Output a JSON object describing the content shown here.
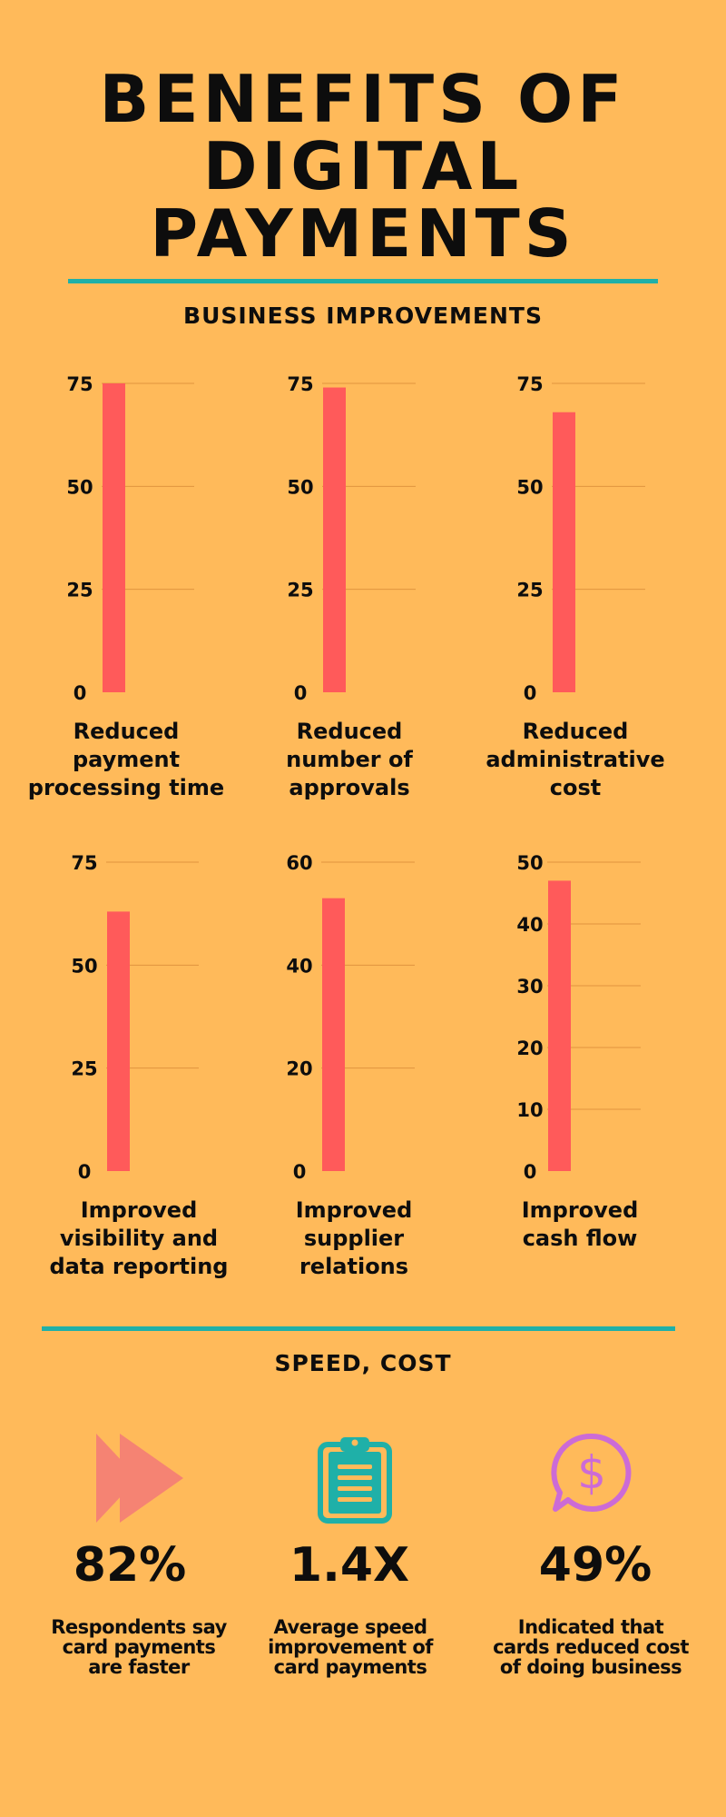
{
  "title_line1": "BENEFITS OF",
  "title_line2": "DIGITAL PAYMENTS",
  "section1_heading": "BUSINESS IMPROVEMENTS",
  "section2_heading": "SPEED, COST",
  "colors": {
    "background": "#FFBA5A",
    "bar": "#FF5A5A",
    "rule": "#1FB0A8",
    "grid": "#E0943F"
  },
  "chart_data": [
    {
      "type": "bar",
      "label_lines": [
        "Reduced",
        "payment",
        "processing time"
      ],
      "value": 75,
      "ylim": [
        0,
        75
      ],
      "yticks": [
        0,
        25,
        50,
        75
      ],
      "grid": true
    },
    {
      "type": "bar",
      "label_lines": [
        "Reduced",
        "number of",
        "approvals"
      ],
      "value": 74,
      "ylim": [
        0,
        75
      ],
      "yticks": [
        0,
        25,
        50,
        75
      ],
      "grid": true
    },
    {
      "type": "bar",
      "label_lines": [
        "Reduced",
        "administrative",
        "cost"
      ],
      "value": 68,
      "ylim": [
        0,
        75
      ],
      "yticks": [
        0,
        25,
        50,
        75
      ],
      "grid": true
    },
    {
      "type": "bar",
      "label_lines": [
        "Improved",
        "visibility and",
        "data reporting"
      ],
      "value": 63,
      "ylim": [
        0,
        75
      ],
      "yticks": [
        0,
        25,
        50,
        75
      ],
      "grid": true
    },
    {
      "type": "bar",
      "label_lines": [
        "Improved",
        "supplier",
        "relations"
      ],
      "value": 53,
      "ylim": [
        0,
        60
      ],
      "yticks": [
        0,
        20,
        40,
        60
      ],
      "grid": true
    },
    {
      "type": "bar",
      "label_lines": [
        "Improved",
        "cash flow"
      ],
      "value": 47,
      "ylim": [
        0,
        50
      ],
      "yticks": [
        0,
        10,
        20,
        30,
        40,
        50
      ],
      "grid": true
    }
  ],
  "stats": [
    {
      "icon": "fast-forward-icon",
      "color": "#F58373",
      "value": "82%",
      "desc_lines": [
        "Respondents say",
        "card payments",
        "are faster"
      ]
    },
    {
      "icon": "clipboard-icon",
      "color": "#1FB0A8",
      "value": "1.4X",
      "desc_lines": [
        "Average speed",
        "improvement of",
        "card payments"
      ]
    },
    {
      "icon": "dollar-speech-bubble-icon",
      "color": "#CC6BD6",
      "value": "49%",
      "desc_lines": [
        "Indicated that",
        "cards reduced cost",
        "of doing business"
      ]
    }
  ]
}
